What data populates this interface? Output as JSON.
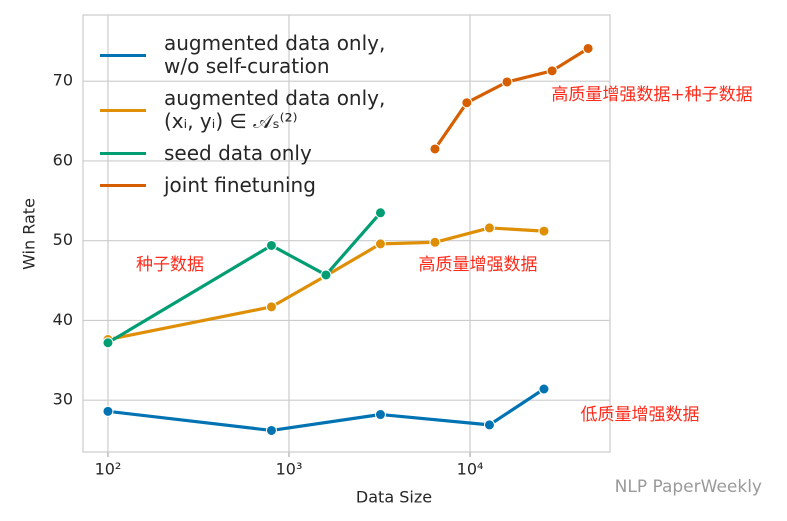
{
  "chart_data": {
    "type": "line",
    "x_label": "Data Size",
    "y_label": "Win Rate",
    "log_x": true,
    "grid": true,
    "xlim": [
      72.8,
      59300
    ],
    "ylim": [
      23.5,
      78.3
    ],
    "xticks": [
      {
        "value": 100,
        "label": "10²"
      },
      {
        "value": 1000,
        "label": "10³"
      },
      {
        "value": 10000,
        "label": "10⁴"
      }
    ],
    "yticks": [
      30,
      40,
      50,
      60,
      70
    ],
    "series": [
      {
        "name": "augmented data only,\nw/o self-curation",
        "color": "#0173b2",
        "x": [
          100,
          800,
          3200,
          12800,
          25600
        ],
        "values": [
          28.6,
          26.2,
          28.2,
          26.9,
          31.4
        ]
      },
      {
        "name": "augmented data only,\n(xᵢ, yᵢ) ∈ 𝒜ₛ⁽²⁾",
        "color": "#de8f05",
        "x": [
          100,
          800,
          1600,
          3200,
          6400,
          12800,
          25600
        ],
        "values": [
          37.6,
          41.7,
          45.6,
          49.6,
          49.8,
          51.6,
          51.2
        ]
      },
      {
        "name": "seed data only",
        "color": "#029e73",
        "x": [
          100,
          800,
          1600,
          3200
        ],
        "values": [
          37.2,
          49.4,
          45.7,
          53.5
        ]
      },
      {
        "name": "joint finetuning",
        "color": "#d55e00",
        "x": [
          6400,
          9600,
          16000,
          28400,
          44900
        ],
        "values": [
          61.5,
          67.3,
          69.9,
          71.3,
          74.1
        ]
      }
    ],
    "annotations": [
      "种子数据",
      "高质量增强数据",
      "高质量增强数据+种子数据",
      "低质量增强数据"
    ],
    "watermark": "NLP PaperWeekly"
  }
}
